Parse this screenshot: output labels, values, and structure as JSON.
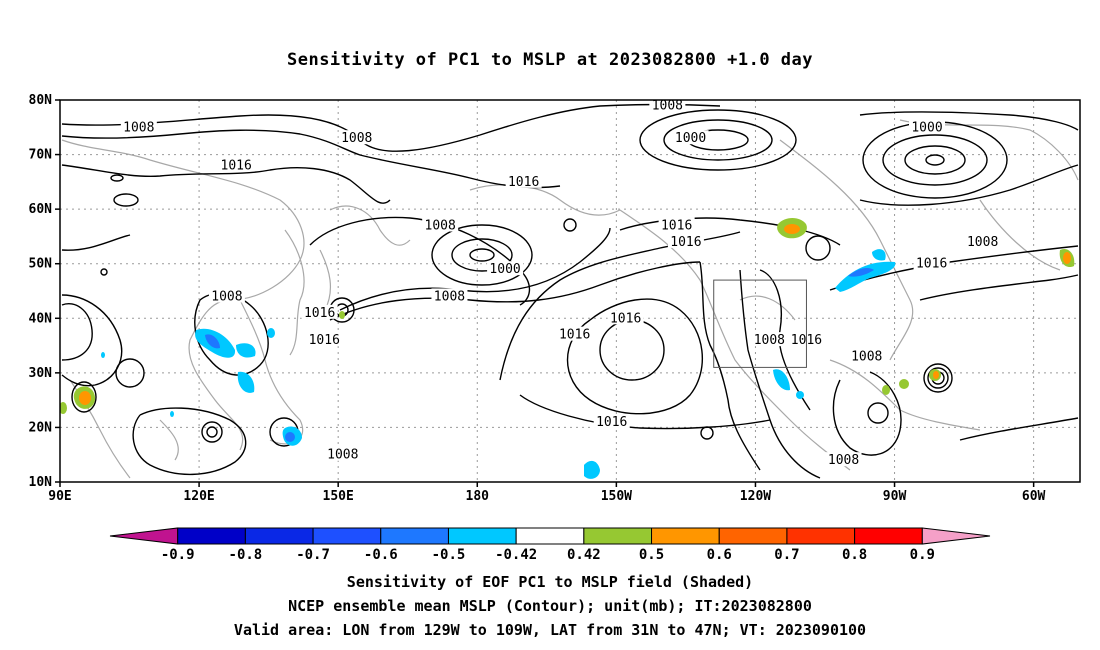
{
  "title": "Sensitivity of PC1 to MSLP at 2023082800 +1.0 day",
  "lat_ticks": [
    "80N",
    "70N",
    "60N",
    "50N",
    "40N",
    "30N",
    "20N",
    "10N"
  ],
  "lon_ticks": [
    "90E",
    "120E",
    "150E",
    "180",
    "150W",
    "120W",
    "90W",
    "60W"
  ],
  "contour_labels": [
    {
      "text": "1008",
      "lon": 107,
      "lat": 75
    },
    {
      "text": "1008",
      "lon": 154,
      "lat": 73
    },
    {
      "text": "1016",
      "lon": 128,
      "lat": 68
    },
    {
      "text": "1008",
      "lon": 172,
      "lat": 57
    },
    {
      "text": "1016",
      "lon": 190,
      "lat": 65
    },
    {
      "text": "1008",
      "lon": 221,
      "lat": 79
    },
    {
      "text": "1000",
      "lon": 226,
      "lat": 73
    },
    {
      "text": "1000",
      "lon": 277,
      "lat": 75
    },
    {
      "text": "1016",
      "lon": 223,
      "lat": 57
    },
    {
      "text": "1016",
      "lon": 225,
      "lat": 54
    },
    {
      "text": "1000",
      "lon": 186,
      "lat": 49
    },
    {
      "text": "1008",
      "lon": 174,
      "lat": 44
    },
    {
      "text": "1008",
      "lon": 126,
      "lat": 44
    },
    {
      "text": "1016",
      "lon": 146,
      "lat": 41
    },
    {
      "text": "1016",
      "lon": 147,
      "lat": 36
    },
    {
      "text": "1016",
      "lon": 201,
      "lat": 37
    },
    {
      "text": "1016",
      "lon": 212,
      "lat": 40
    },
    {
      "text": "1008",
      "lon": 243,
      "lat": 36
    },
    {
      "text": "1016",
      "lon": 251,
      "lat": 36
    },
    {
      "text": "1008",
      "lon": 264,
      "lat": 33
    },
    {
      "text": "1008",
      "lon": 289,
      "lat": 54
    },
    {
      "text": "1016",
      "lon": 278,
      "lat": 50
    },
    {
      "text": "1016",
      "lon": 209,
      "lat": 21
    },
    {
      "text": "1008",
      "lon": 151,
      "lat": 15
    },
    {
      "text": "1008",
      "lon": 259,
      "lat": 14
    }
  ],
  "valid_box": {
    "lon_west": -129,
    "lon_east": -109,
    "lat_south": 31,
    "lat_north": 47
  },
  "colorbar": {
    "colors": [
      "#c0138f",
      "#0000c8",
      "#0a28e6",
      "#1e50ff",
      "#1e78ff",
      "#00c8ff",
      "#ffffff",
      "#96c832",
      "#ff9600",
      "#ff6400",
      "#ff3200",
      "#ff0000",
      "#f5a0c8"
    ],
    "labels": [
      "-0.9",
      "-0.8",
      "-0.7",
      "-0.6",
      "-0.5",
      "-0.42",
      "0.42",
      "0.5",
      "0.6",
      "0.7",
      "0.8",
      "0.9"
    ]
  },
  "captions": {
    "line1": "Sensitivity of EOF PC1 to MSLP field (Shaded)",
    "line2": "NCEP ensemble mean MSLP (Contour); unit(mb); IT:2023082800",
    "line3": "Valid area: LON from 129W to 109W, LAT from 31N to 47N; VT: 2023090100"
  }
}
